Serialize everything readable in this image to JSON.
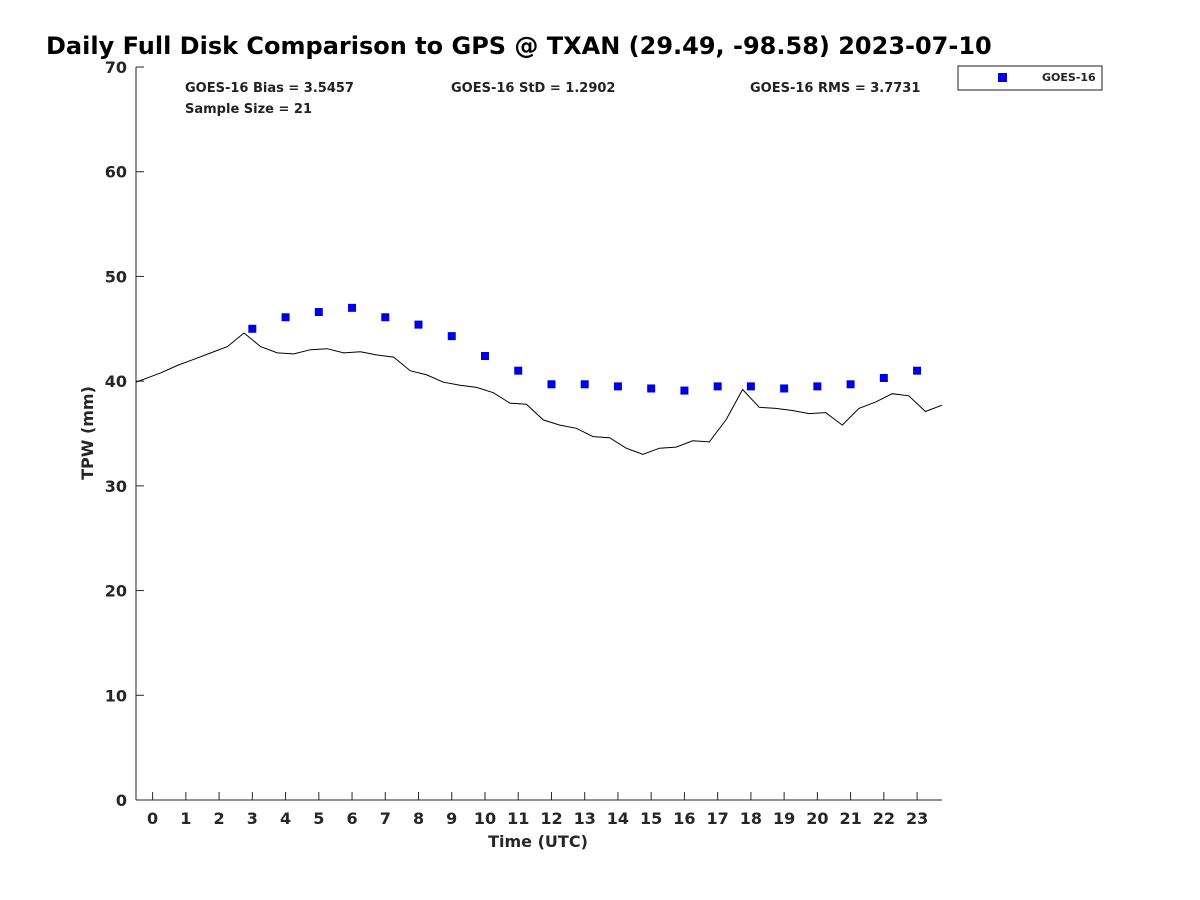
{
  "chart_data": {
    "type": "scatter",
    "title": "Daily Full Disk Comparison to GPS @ TXAN (29.49, -98.58) 2023-07-10",
    "xlabel": "Time (UTC)",
    "ylabel": "TPW (mm)",
    "xlim": [
      -0.5,
      23.75
    ],
    "ylim": [
      0,
      70
    ],
    "xticks": [
      0,
      1,
      2,
      3,
      4,
      5,
      6,
      7,
      8,
      9,
      10,
      11,
      12,
      13,
      14,
      15,
      16,
      17,
      18,
      19,
      20,
      21,
      22,
      23
    ],
    "yticks": [
      0,
      10,
      20,
      30,
      40,
      50,
      60,
      70
    ],
    "legend": {
      "placement": "top-right-outside",
      "entries": [
        "GOES-16"
      ]
    },
    "stats": {
      "bias": "GOES-16 Bias = 3.5457",
      "std": "GOES-16 StD = 1.2902",
      "rms": "GOES-16 RMS = 3.7731",
      "sample": "Sample Size = 21"
    },
    "series": [
      {
        "name": "GOES-16",
        "color": "#0000e6",
        "marker": "square",
        "x": [
          3,
          4,
          5,
          6,
          7,
          8,
          9,
          10,
          11,
          12,
          13,
          14,
          15,
          16,
          17,
          18,
          19,
          20,
          21,
          22,
          23
        ],
        "y": [
          45.0,
          46.1,
          46.6,
          47.0,
          46.1,
          45.4,
          44.3,
          42.4,
          41.0,
          39.7,
          39.7,
          39.5,
          39.3,
          39.1,
          39.5,
          39.5,
          39.3,
          39.5,
          39.7,
          40.3,
          41.0
        ]
      },
      {
        "name": "GPS",
        "color": "#000000",
        "marker": "line",
        "x": [
          -0.5,
          0.25,
          0.75,
          1.25,
          1.75,
          2.25,
          2.75,
          3.25,
          3.75,
          4.25,
          4.75,
          5.25,
          5.75,
          6.25,
          6.75,
          7.25,
          7.75,
          8.25,
          8.75,
          9.25,
          9.75,
          10.25,
          10.75,
          11.25,
          11.75,
          12.25,
          12.75,
          13.25,
          13.75,
          14.25,
          14.75,
          15.25,
          15.75,
          16.25,
          16.75,
          17.25,
          17.75,
          18.25,
          18.75,
          19.25,
          19.75,
          20.25,
          20.75,
          21.25,
          21.75,
          22.25,
          22.75,
          23.25,
          23.75
        ],
        "y": [
          39.9,
          40.8,
          41.5,
          42.1,
          42.7,
          43.3,
          44.6,
          43.3,
          42.7,
          42.6,
          43.0,
          43.1,
          42.7,
          42.8,
          42.5,
          42.3,
          41.0,
          40.6,
          39.9,
          39.6,
          39.4,
          38.9,
          37.9,
          37.8,
          36.3,
          35.8,
          35.5,
          34.7,
          34.6,
          33.6,
          33.0,
          33.6,
          33.7,
          34.3,
          34.2,
          36.3,
          39.2,
          37.5,
          37.4,
          37.2,
          36.9,
          37.0,
          35.8,
          37.4,
          38.0,
          38.8,
          38.6,
          37.1,
          37.7
        ]
      }
    ]
  }
}
